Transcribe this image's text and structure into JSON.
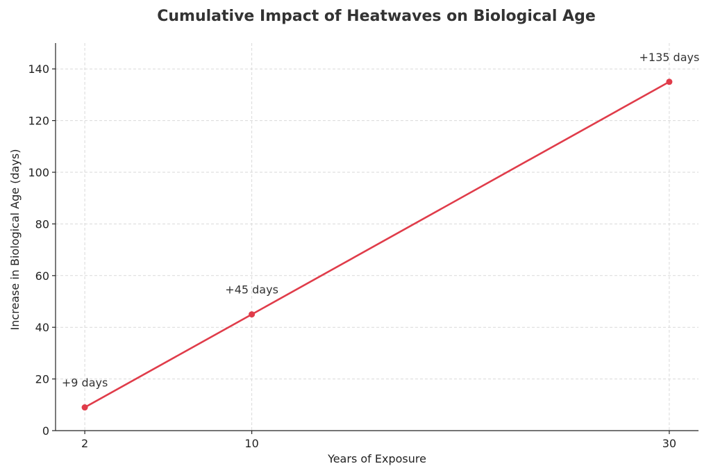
{
  "chart_data": {
    "type": "line",
    "title": "Cumulative Impact of Heatwaves on Biological Age",
    "xlabel": "Years of Exposure",
    "ylabel": "Increase in Biological Age (days)",
    "x": [
      2,
      10,
      30
    ],
    "xticks": [
      2,
      10,
      30
    ],
    "yticks": [
      0,
      20,
      40,
      60,
      80,
      100,
      120,
      140
    ],
    "xlim": [
      0.6,
      31.4
    ],
    "ylim": [
      0,
      150
    ],
    "grid": true,
    "series": [
      {
        "values": [
          9,
          45,
          135
        ],
        "labels": [
          "+9 days",
          "+45 days",
          "+135 days"
        ],
        "color": "#e03c4a"
      }
    ]
  }
}
